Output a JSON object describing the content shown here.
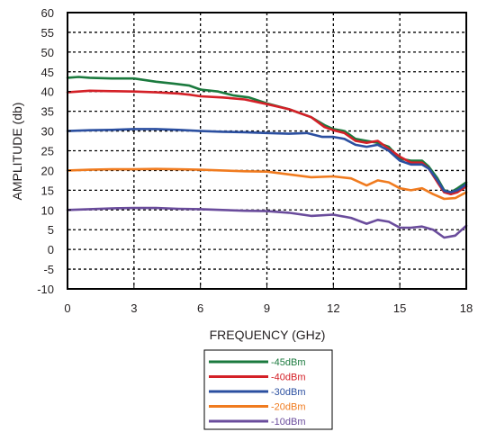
{
  "chart_data": {
    "type": "line",
    "xlabel": "FREQUENCY (GHz)",
    "ylabel": "AMPLITUDE (db)",
    "xlim": [
      0,
      18
    ],
    "ylim": [
      -10,
      60
    ],
    "x_ticks": [
      "0",
      "3",
      "6",
      "9",
      "12",
      "15",
      "18"
    ],
    "y_ticks": [
      "60",
      "55",
      "50",
      "45",
      "40",
      "35",
      "30",
      "25",
      "20",
      "15",
      "10",
      "5",
      "0",
      "-5",
      "-10"
    ],
    "grid": true,
    "legend_position": "bottom-center",
    "series": [
      {
        "name": "-45dBm",
        "color": "#1b7a3e",
        "x": [
          0,
          0.5,
          1,
          2,
          3,
          4,
          4.8,
          5.5,
          6,
          6.8,
          7.5,
          8.2,
          9,
          10,
          11,
          11.6,
          12,
          12.5,
          13,
          13.5,
          14,
          14.5,
          15,
          15.5,
          16,
          16.3,
          16.7,
          17,
          17.3,
          17.6,
          18
        ],
        "y": [
          43.5,
          43.7,
          43.5,
          43.3,
          43.3,
          42.5,
          42.0,
          41.5,
          40.5,
          40.0,
          39.0,
          38.5,
          37.0,
          35.5,
          33.5,
          31.5,
          30.5,
          30.0,
          28.0,
          27.5,
          27.0,
          26.0,
          23.0,
          22.5,
          22.5,
          21.0,
          18.0,
          15.0,
          14.5,
          15.5,
          17.0
        ]
      },
      {
        "name": "-40dBm",
        "color": "#d42027",
        "x": [
          0,
          0.5,
          1,
          2,
          3,
          4,
          5,
          5.5,
          6,
          7,
          8,
          9,
          10,
          11,
          11.6,
          12,
          12.5,
          13,
          13.5,
          14,
          14.5,
          15,
          15.5,
          16,
          16.3,
          16.7,
          17,
          17.3,
          17.6,
          18
        ],
        "y": [
          39.8,
          40.0,
          40.2,
          40.1,
          40.0,
          39.8,
          39.5,
          39.2,
          38.8,
          38.5,
          38.0,
          36.8,
          35.5,
          33.5,
          31.0,
          30.2,
          29.5,
          27.5,
          27.0,
          27.5,
          25.5,
          23.5,
          22.0,
          22.0,
          20.5,
          17.0,
          14.5,
          14.0,
          14.5,
          16.0
        ]
      },
      {
        "name": "-30dBm",
        "color": "#2b4fa0",
        "x": [
          0,
          1,
          2,
          3,
          4,
          5,
          6,
          7,
          8,
          9,
          10,
          10.8,
          11.5,
          12,
          12.5,
          13,
          13.5,
          14,
          14.5,
          15,
          15.5,
          16,
          16.3,
          16.7,
          17,
          17.3,
          17.6,
          18
        ],
        "y": [
          30.0,
          30.2,
          30.3,
          30.5,
          30.5,
          30.3,
          30.0,
          29.8,
          29.7,
          29.5,
          29.3,
          29.5,
          28.5,
          28.5,
          28.0,
          26.5,
          26.0,
          26.5,
          25.0,
          22.5,
          21.5,
          21.5,
          20.5,
          17.5,
          14.8,
          14.5,
          15.0,
          16.5
        ]
      },
      {
        "name": "-20dBm",
        "color": "#f07b1f",
        "x": [
          0,
          1,
          2,
          3,
          4,
          5,
          6,
          7,
          8,
          9,
          10,
          11,
          12,
          12.8,
          13.5,
          14,
          14.5,
          15,
          15.5,
          16,
          16.5,
          17,
          17.5,
          18
        ],
        "y": [
          20.0,
          20.2,
          20.3,
          20.3,
          20.4,
          20.3,
          20.2,
          20.0,
          19.8,
          19.7,
          19.0,
          18.3,
          18.5,
          18.0,
          16.2,
          17.5,
          17.0,
          15.5,
          15.0,
          15.5,
          14.0,
          12.8,
          13.0,
          14.5
        ]
      },
      {
        "name": "-10dBm",
        "color": "#6a4c9c",
        "x": [
          0,
          1,
          2,
          3,
          4,
          5,
          6,
          7,
          8,
          9,
          10,
          11,
          12,
          12.8,
          13.5,
          14,
          14.5,
          15,
          15.5,
          16,
          16.5,
          17,
          17.5,
          18
        ],
        "y": [
          10.0,
          10.2,
          10.4,
          10.5,
          10.5,
          10.3,
          10.2,
          10.0,
          9.8,
          9.7,
          9.3,
          8.5,
          8.8,
          8.0,
          6.5,
          7.5,
          7.0,
          5.5,
          5.5,
          5.8,
          5.0,
          3.0,
          3.5,
          6.0
        ]
      }
    ]
  }
}
